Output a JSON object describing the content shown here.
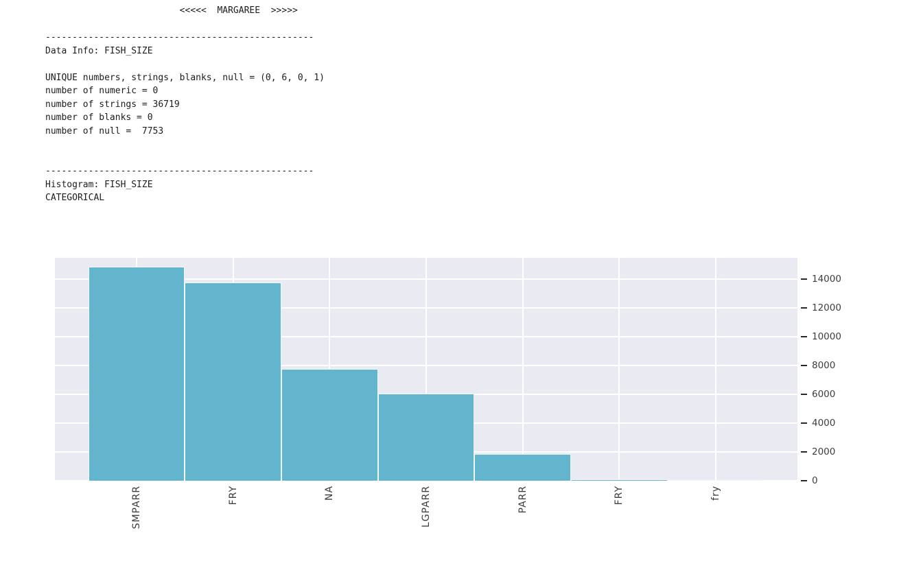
{
  "console": {
    "lines": [
      "                         <<<<<  MARGAREE  >>>>>",
      "",
      "--------------------------------------------------",
      "Data Info: FISH_SIZE",
      "",
      "UNIQUE numbers, strings, blanks, null = (0, 6, 0, 1)",
      "number of numeric = 0",
      "number of strings = 36719",
      "number of blanks = 0",
      "number of null =  7753",
      "",
      "",
      "--------------------------------------------------",
      "Histogram: FISH_SIZE",
      "CATEGORICAL"
    ]
  },
  "chart_data": {
    "type": "bar",
    "title": "Histogram: FISH_SIZE",
    "subtitle": "CATEGORICAL",
    "categories": [
      "SMPARR",
      "FRY",
      "NA",
      "LGPARR",
      "PARR",
      "FRY",
      "fry"
    ],
    "values": [
      14860,
      13800,
      7753,
      6060,
      1850,
      100,
      49
    ],
    "xlabel": "",
    "ylabel": "",
    "ylim": [
      0,
      15500
    ],
    "yticks": [
      0,
      2000,
      4000,
      6000,
      8000,
      10000,
      12000,
      14000
    ],
    "grid": true,
    "legend": false,
    "yaxis_side": "right",
    "xtick_rotation": 90,
    "colors": {
      "bar": "#62b5cd",
      "plot_background": "#eaeaf2",
      "gridline": "#ffffff",
      "tick_label": "#3d3d3d",
      "tick_mark": "#262626"
    }
  }
}
